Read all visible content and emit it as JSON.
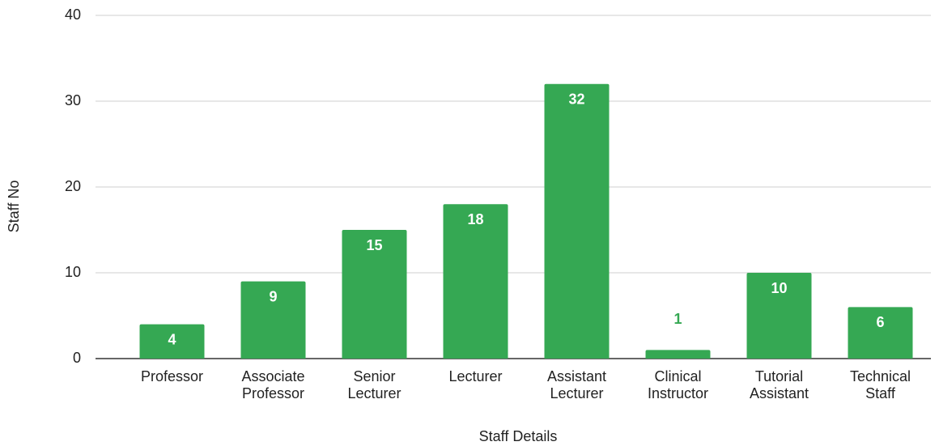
{
  "chart_data": {
    "type": "bar",
    "categories": [
      "Professor",
      "Associate Professor",
      "Senior Lecturer",
      "Lecturer",
      "Assistant Lecturer",
      "Clinical Instructor",
      "Tutorial Assistant",
      "Technical Staff"
    ],
    "values": [
      4,
      9,
      15,
      18,
      32,
      1,
      10,
      6
    ],
    "color": "#35a853",
    "x_label": "Staff Details",
    "y_label": "Staff No",
    "ylim": [
      0,
      40
    ],
    "yticks": [
      0,
      10,
      20,
      30,
      40
    ],
    "grid": true
  }
}
